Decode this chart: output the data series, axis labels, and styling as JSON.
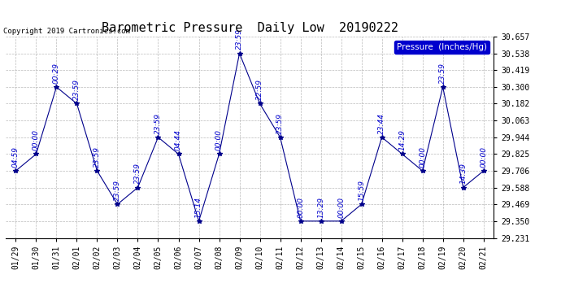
{
  "title": "Barometric Pressure  Daily Low  20190222",
  "copyright": "Copyright 2019 Cartronics.com",
  "legend_label": "Pressure  (Inches/Hg)",
  "x_labels": [
    "01/29",
    "01/30",
    "01/31",
    "02/01",
    "02/02",
    "02/03",
    "02/04",
    "02/05",
    "02/06",
    "02/07",
    "02/08",
    "02/09",
    "02/10",
    "02/11",
    "02/12",
    "02/13",
    "02/14",
    "02/15",
    "02/16",
    "02/17",
    "02/18",
    "02/19",
    "02/20",
    "02/21"
  ],
  "y_values": [
    29.706,
    29.825,
    30.3,
    30.182,
    29.706,
    29.469,
    29.588,
    29.944,
    29.825,
    29.35,
    29.825,
    30.538,
    30.182,
    29.944,
    29.35,
    29.35,
    29.35,
    29.469,
    29.944,
    29.825,
    29.706,
    30.3,
    29.588,
    29.706
  ],
  "point_labels": [
    "04:59",
    "00:00",
    "00:29",
    "23:59",
    "23:59",
    "23:59",
    "23:59",
    "23:59",
    "04:44",
    "15:14",
    "00:00",
    "23:59",
    "22:59",
    "23:59",
    "00:00",
    "13:29",
    "00:00",
    "15:59",
    "23:44",
    "14:29",
    "00:00",
    "23:59",
    "14:39",
    "00:00"
  ],
  "ylim_min": 29.231,
  "ylim_max": 30.657,
  "yticks": [
    29.231,
    29.35,
    29.469,
    29.588,
    29.706,
    29.825,
    29.944,
    30.063,
    30.182,
    30.3,
    30.419,
    30.538,
    30.657
  ],
  "line_color": "#00008B",
  "marker_color": "#00008B",
  "label_color": "#0000CD",
  "bg_color": "#FFFFFF",
  "grid_color": "#AAAAAA",
  "title_fontsize": 11,
  "tick_fontsize": 7,
  "annot_fontsize": 6.5,
  "copyright_fontsize": 6.5,
  "legend_fontsize": 7.5,
  "legend_box_color": "#0000CD"
}
